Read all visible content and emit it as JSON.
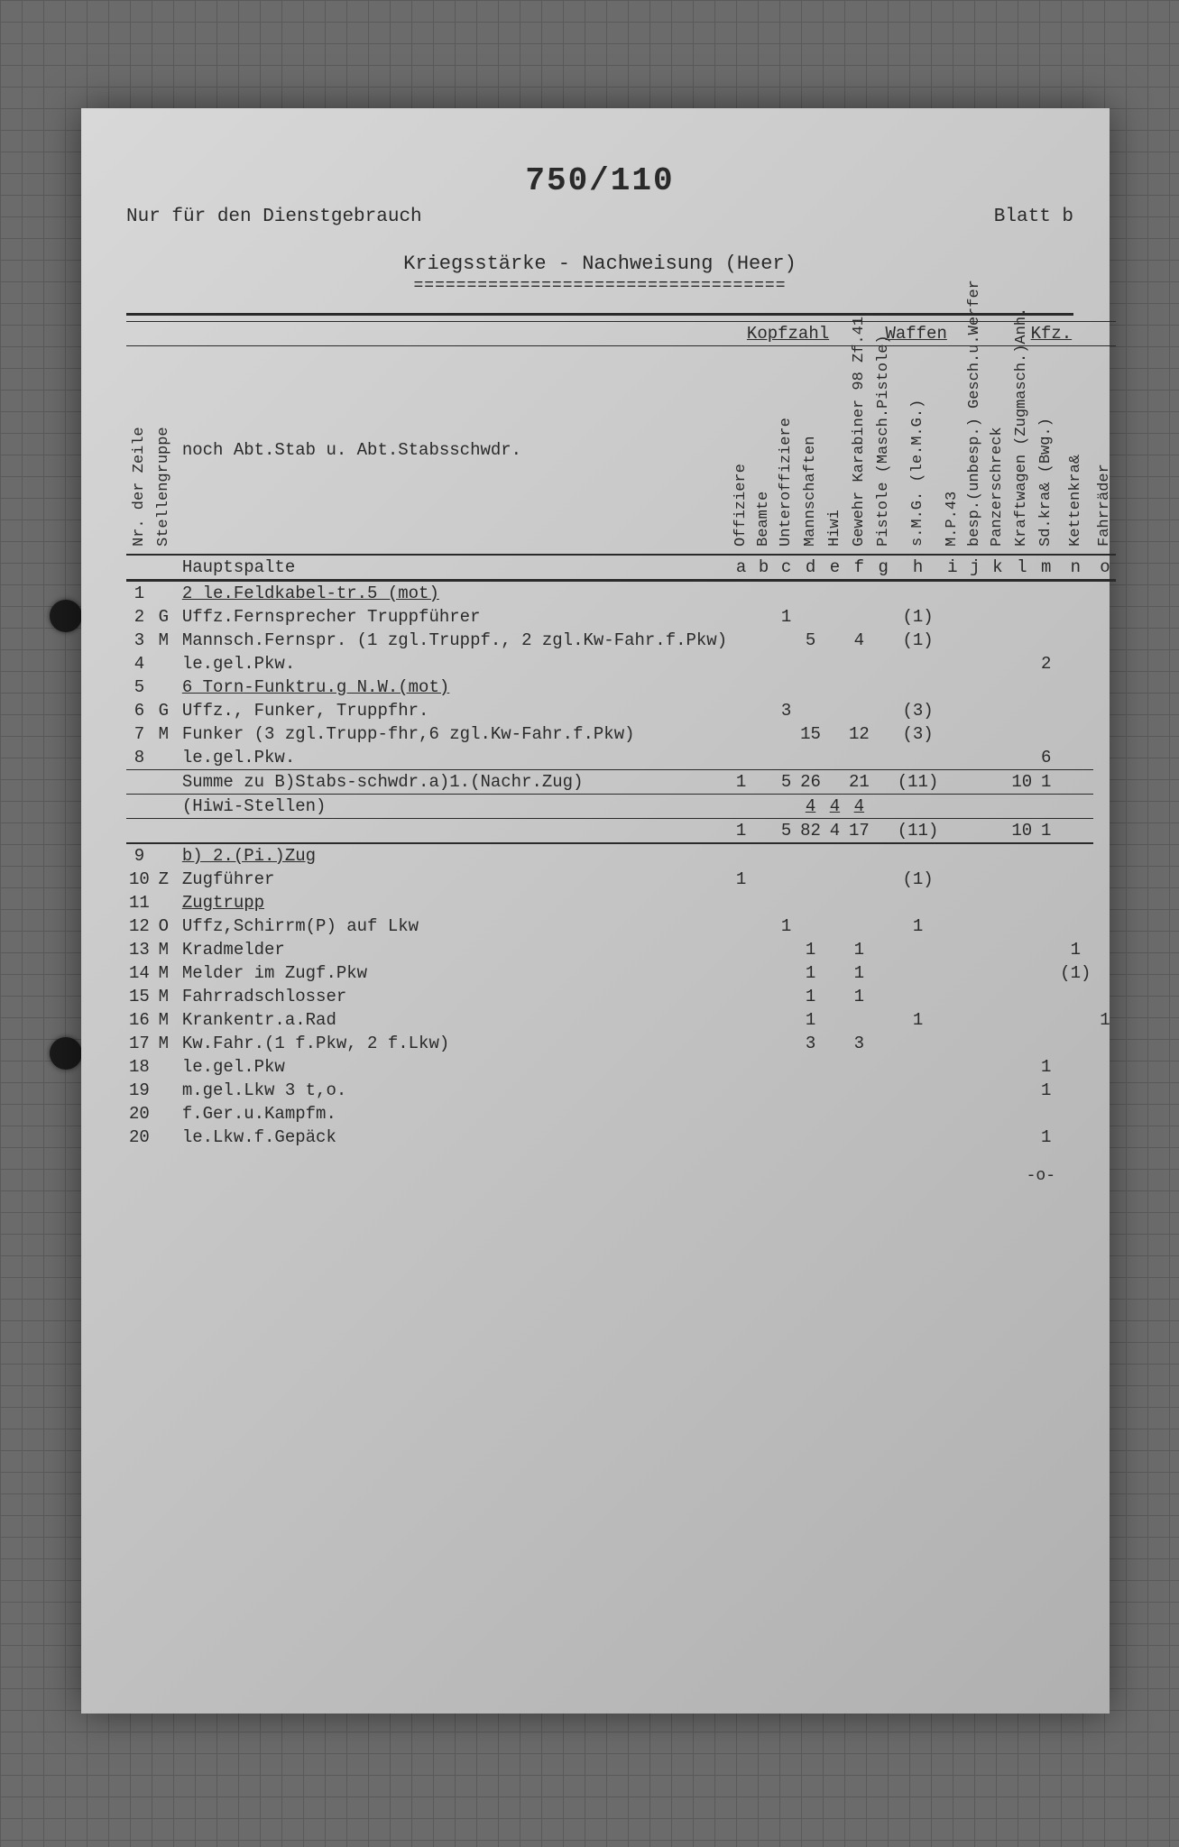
{
  "doc_number": "750/110",
  "classification": "Nur für den Dienstgebrauch",
  "page_label": "Blatt b",
  "title": "Kriegsstärke - Nachweisung (Heer)",
  "title_underline": "===================================",
  "sub_heading": "noch Abt.Stab u. Abt.Stabsschwdr.",
  "hauptspalte_label": "Hauptspalte",
  "footer_mark": "-o-",
  "group_headers": [
    "",
    "Kopfzahl",
    "Waffen",
    "Kfz."
  ],
  "vertical_headers": {
    "nr": "Nr. der Zeile",
    "sg": "Stellengruppe",
    "a": "Offiziere",
    "b": "Beamte",
    "c": "Unteroffiziere",
    "d": "Mannschaften",
    "e": "Hiwi",
    "f": "Gewehr Karabiner 98 Zf.41",
    "g": "Pistole (Masch.Pistole)",
    "h": "s.M.G. (le.M.G.)",
    "i": "M.P.43",
    "j": "besp.(unbesp.) Gesch.u.Werfer",
    "k": "Panzerschreck",
    "l": "Kraftwagen (Zugmasch.)Anh.",
    "m": "Sd.kra& (Bwg.)",
    "n": "Kettenkra&",
    "o": "Fahrräder"
  },
  "column_letters": [
    "a",
    "b",
    "c",
    "d",
    "e",
    "f",
    "g",
    "h",
    "i",
    "j",
    "k",
    "l",
    "m",
    "n",
    "o"
  ],
  "rows": [
    {
      "nr": "1",
      "sg": "",
      "desc": "2 le.Feldkabel-tr.5 (mot)",
      "u": true
    },
    {
      "nr": "2",
      "sg": "G",
      "desc": "Uffz.Fernsprecher Truppführer",
      "c": "1",
      "h": "(1)"
    },
    {
      "nr": "3",
      "sg": "M",
      "desc": "Mannsch.Fernspr. (1 zgl.Truppf., 2 zgl.Kw-Fahr.f.Pkw)",
      "d": "5",
      "f": "4",
      "h": "(1)"
    },
    {
      "nr": "4",
      "sg": "",
      "desc": "le.gel.Pkw.",
      "m": "2"
    },
    {
      "nr": "5",
      "sg": "",
      "desc": "6 Torn-Funktru.g N.W.(mot)",
      "u": true
    },
    {
      "nr": "6",
      "sg": "G",
      "desc": "Uffz., Funker, Truppfhr.",
      "c": "3",
      "h": "(3)"
    },
    {
      "nr": "7",
      "sg": "M",
      "desc": "Funker (3 zgl.Trupp-fhr,6 zgl.Kw-Fahr.f.Pkw)",
      "d": "15",
      "f": "12",
      "h": "(3)"
    },
    {
      "nr": "8",
      "sg": "",
      "desc": "le.gel.Pkw.",
      "m": "6"
    }
  ],
  "sum1": {
    "desc": "Summe zu B)Stabs-schwdr.a)1.(Nachr.Zug)",
    "a": "1",
    "c": "5",
    "d": "26",
    "f": "21",
    "h": "(11)",
    "m": "10",
    "n": "1"
  },
  "hiwi": {
    "desc": "(Hiwi-Stellen)",
    "d": "4",
    "e": "4",
    "f": "4"
  },
  "sum2": {
    "a": "1",
    "c": "5",
    "d": "82",
    "e": "4",
    "f": "17",
    "h": "(11)",
    "m": "10",
    "n": "1"
  },
  "rows2": [
    {
      "nr": "9",
      "sg": "",
      "desc": "b) 2.(Pi.)Zug",
      "u": true
    },
    {
      "nr": "10",
      "sg": "Z",
      "desc": "Zugführer",
      "a": "1",
      "h": "(1)"
    },
    {
      "nr": "11",
      "sg": "",
      "desc": "Zugtrupp",
      "u": true
    },
    {
      "nr": "12",
      "sg": "O",
      "desc": "Uffz,Schirrm(P) auf Lkw",
      "c": "1",
      "h": "1"
    },
    {
      "nr": "13",
      "sg": "M",
      "desc": "Kradmelder",
      "d": "1",
      "f": "1",
      "n": "1"
    },
    {
      "nr": "14",
      "sg": "M",
      "desc": "Melder im Zugf.Pkw",
      "d": "1",
      "f": "1",
      "n": "(1)"
    },
    {
      "nr": "15",
      "sg": "M",
      "desc": "Fahrradschlosser",
      "d": "1",
      "f": "1"
    },
    {
      "nr": "16",
      "sg": "M",
      "desc": "Krankentr.a.Rad",
      "d": "1",
      "h": "1",
      "o": "1"
    },
    {
      "nr": "17",
      "sg": "M",
      "desc": "Kw.Fahr.(1 f.Pkw, 2 f.Lkw)",
      "d": "3",
      "f": "3"
    },
    {
      "nr": "18",
      "sg": "",
      "desc": "le.gel.Pkw",
      "m": "1"
    },
    {
      "nr": "19",
      "sg": "",
      "desc": "m.gel.Lkw 3 t,o.",
      "m": "1"
    },
    {
      "nr": "20",
      "sg": "",
      "desc": "f.Ger.u.Kampfm."
    },
    {
      "nr": "20",
      "sg": "",
      "desc": "le.Lkw.f.Gepäck",
      "m": "1"
    }
  ]
}
